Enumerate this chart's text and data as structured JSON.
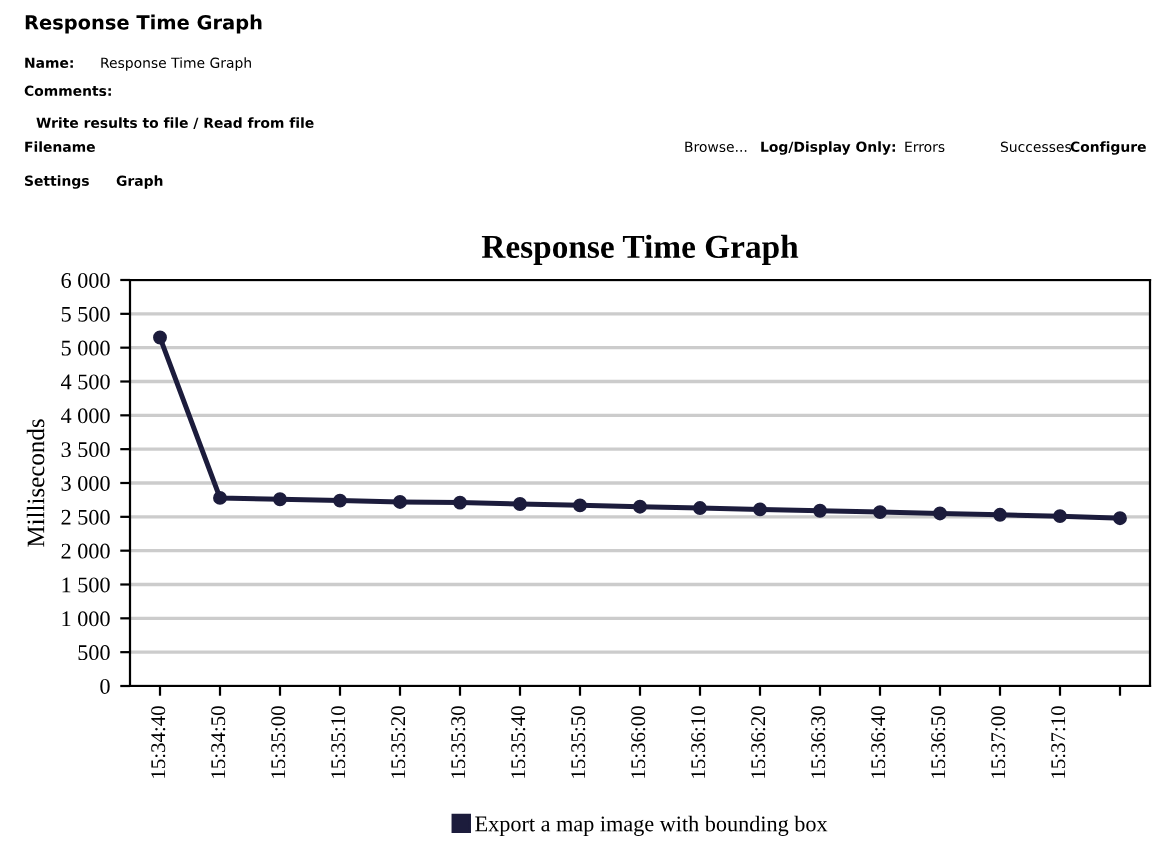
{
  "chart_data": {
    "type": "line",
    "title": "Response Time Graph",
    "ylabel": "Milliseconds",
    "categories": [
      "15:34:40",
      "15:34:50",
      "15:35:00",
      "15:35:10",
      "15:35:20",
      "15:35:30",
      "15:35:40",
      "15:35:50",
      "15:36:00",
      "15:36:10",
      "15:36:20",
      "15:36:30",
      "15:36:40",
      "15:36:50",
      "15:37:00",
      "15:37:10",
      null
    ],
    "series": [
      {
        "name": "Export a map image with bounding box",
        "color": "#1c1c3c",
        "values": [
          5150,
          2780,
          2760,
          2740,
          2720,
          2710,
          2690,
          2670,
          2650,
          2630,
          2610,
          2590,
          2570,
          2550,
          2530,
          2510,
          2480
        ]
      }
    ],
    "ylim": [
      0,
      6000
    ],
    "yticks": [
      {
        "value": 0,
        "label": "0"
      },
      {
        "value": 500,
        "label": "500"
      },
      {
        "value": 1000,
        "label": "1 000"
      },
      {
        "value": 1500,
        "label": "1 500"
      },
      {
        "value": 2000,
        "label": "2 000"
      },
      {
        "value": 2500,
        "label": "2 500"
      },
      {
        "value": 3000,
        "label": "3 000"
      },
      {
        "value": 3500,
        "label": "3 500"
      },
      {
        "value": 4000,
        "label": "4 000"
      },
      {
        "value": 4500,
        "label": "4 500"
      },
      {
        "value": 5000,
        "label": "5 000"
      },
      {
        "value": 5500,
        "label": "5 500"
      },
      {
        "value": 6000,
        "label": "6 000"
      }
    ],
    "grid": "y",
    "legend": "bottom",
    "marker": "circle",
    "line_style": "solid",
    "annotations": [
      "Response Time Graph",
      "Name:",
      "Response Time Graph",
      "Comments:",
      "Write results to file / Read from file",
      "Filename",
      "Browse...",
      "Log/Display Only:",
      "Errors",
      "Successes",
      "Configure",
      "Settings",
      "Graph"
    ]
  }
}
